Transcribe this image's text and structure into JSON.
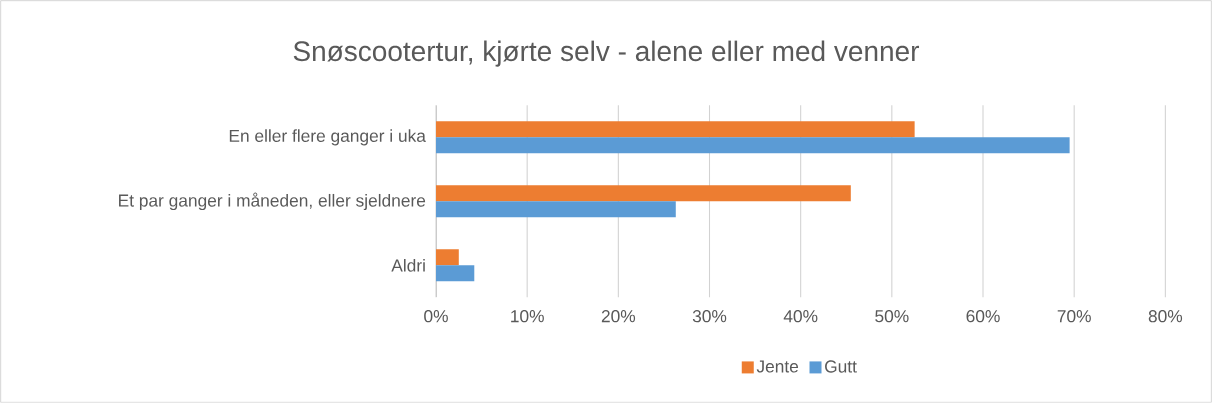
{
  "chart_data": {
    "type": "bar",
    "orientation": "horizontal",
    "title": "Snøscootertur, kjørte selv - alene eller med venner",
    "categories": [
      "En eller flere ganger i uka",
      "Et par ganger i måneden, eller sjeldnere",
      "Aldri"
    ],
    "series": [
      {
        "name": "Jente",
        "color": "#ed7d31",
        "values": [
          52.5,
          45.5,
          2.5
        ]
      },
      {
        "name": "Gutt",
        "color": "#5b9bd5",
        "values": [
          69.5,
          26.3,
          4.2
        ]
      }
    ],
    "xlim": [
      0,
      80
    ],
    "xticks": [
      {
        "value": 0,
        "label": "0%"
      },
      {
        "value": 10,
        "label": "10%"
      },
      {
        "value": 20,
        "label": "20%"
      },
      {
        "value": 30,
        "label": "30%"
      },
      {
        "value": 40,
        "label": "40%"
      },
      {
        "value": 50,
        "label": "50%"
      },
      {
        "value": 60,
        "label": "60%"
      },
      {
        "value": 70,
        "label": "70%"
      },
      {
        "value": 80,
        "label": "80%"
      }
    ],
    "grid": "x",
    "legend": "bottom"
  }
}
